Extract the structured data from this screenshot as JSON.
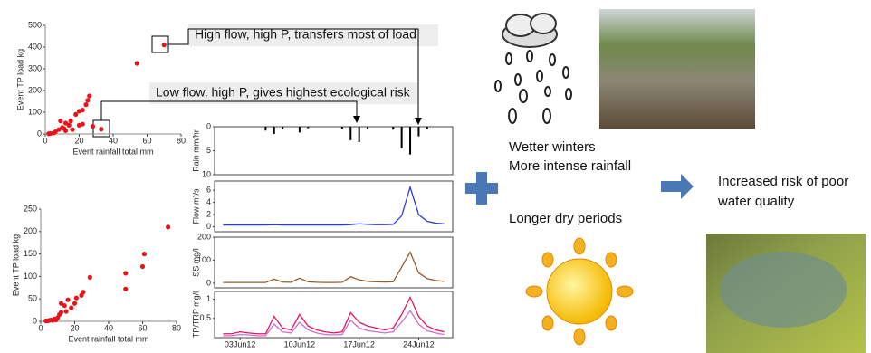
{
  "chart_data": [
    {
      "type": "scatter",
      "xlabel": "Event rainfall total mm",
      "ylabel": "Event TP load kg",
      "color": "#e8141b",
      "x": [
        70,
        54,
        33,
        26,
        25,
        24,
        22,
        20,
        18,
        15,
        14,
        12,
        10,
        8,
        6,
        5,
        3,
        2,
        20,
        22,
        16,
        12,
        9,
        11,
        28
      ],
      "values": [
        410,
        325,
        22,
        175,
        155,
        135,
        110,
        105,
        90,
        60,
        40,
        50,
        30,
        20,
        10,
        5,
        2,
        1,
        40,
        45,
        20,
        15,
        60,
        25,
        35
      ],
      "xlim": [
        0,
        80
      ],
      "ylim": [
        0,
        500
      ],
      "xticks": [
        0,
        20,
        40,
        60,
        80
      ],
      "yticks": [
        0,
        100,
        200,
        300,
        400,
        500
      ]
    },
    {
      "type": "scatter",
      "xlabel": "Event rainfall total mm",
      "ylabel": "Event TP load kg",
      "color": "#e8141b",
      "x": [
        75,
        61,
        60,
        50,
        50,
        29,
        25,
        24,
        21,
        20,
        18,
        16,
        14,
        12,
        11,
        10,
        8,
        6,
        5,
        3,
        12,
        15,
        9,
        7,
        4
      ],
      "values": [
        210,
        150,
        122,
        107,
        72,
        98,
        65,
        58,
        52,
        40,
        30,
        48,
        35,
        20,
        15,
        8,
        5,
        3,
        2,
        1,
        40,
        22,
        3,
        2,
        1
      ],
      "xlim": [
        0,
        80
      ],
      "ylim": [
        0,
        250
      ],
      "xticks": [
        0,
        20,
        40,
        60,
        80
      ],
      "yticks": [
        0,
        50,
        100,
        150,
        200,
        250
      ]
    },
    {
      "type": "bar",
      "ylabel": "Rain mm/hr",
      "color": "#000000",
      "x": [
        1,
        2,
        3,
        4,
        5,
        6,
        7,
        8,
        9,
        10,
        11,
        12,
        13,
        14,
        15,
        16,
        17,
        18,
        19,
        20,
        21,
        22,
        23,
        24,
        25,
        26,
        27
      ],
      "values": [
        0,
        0,
        0,
        0,
        0,
        0.8,
        1.5,
        0.5,
        0,
        1.2,
        0.3,
        0,
        0,
        0,
        0.4,
        2.8,
        3.2,
        0.5,
        0,
        0,
        0.6,
        4.5,
        5.8,
        2,
        0.5,
        0,
        0
      ],
      "xlim": [
        0,
        28
      ],
      "ylim": [
        10,
        0
      ],
      "yticks": [
        0,
        5,
        10
      ]
    },
    {
      "type": "line",
      "ylabel": "Flow m³/s",
      "x": [
        1,
        2,
        3,
        4,
        5,
        6,
        7,
        8,
        9,
        10,
        11,
        12,
        13,
        14,
        15,
        16,
        17,
        18,
        19,
        20,
        21,
        22,
        23,
        24,
        25,
        26,
        27
      ],
      "series": [
        {
          "color": "#2a3bd6",
          "values": [
            0.3,
            0.3,
            0.3,
            0.3,
            0.3,
            0.3,
            0.35,
            0.3,
            0.3,
            0.3,
            0.3,
            0.3,
            0.3,
            0.3,
            0.3,
            0.35,
            0.5,
            0.4,
            0.35,
            0.35,
            0.4,
            1.8,
            6.5,
            2,
            0.9,
            0.6,
            0.5
          ]
        }
      ],
      "xlim": [
        0,
        28
      ],
      "ylim": [
        -0.8,
        7.5
      ],
      "yticks": [
        0,
        2,
        4,
        6
      ]
    },
    {
      "type": "line",
      "ylabel": "SS mg/l",
      "x": [
        1,
        2,
        3,
        4,
        5,
        6,
        7,
        8,
        9,
        10,
        11,
        12,
        13,
        14,
        15,
        16,
        17,
        18,
        19,
        20,
        21,
        22,
        23,
        24,
        25,
        26,
        27
      ],
      "series": [
        {
          "color": "#9a5a2a",
          "values": [
            3,
            3,
            3,
            3,
            3,
            3,
            18,
            5,
            4,
            22,
            6,
            4,
            3,
            3,
            4,
            28,
            15,
            8,
            6,
            5,
            6,
            70,
            135,
            45,
            20,
            12,
            8
          ]
        }
      ],
      "xlim": [
        0,
        28
      ],
      "ylim": [
        -20,
        200
      ],
      "yticks": [
        0,
        100,
        200
      ]
    },
    {
      "type": "line",
      "ylabel": "TP/TRP  mg/l",
      "x": [
        1,
        2,
        3,
        4,
        5,
        6,
        7,
        8,
        9,
        10,
        11,
        12,
        13,
        14,
        15,
        16,
        17,
        18,
        19,
        20,
        21,
        22,
        23,
        24,
        25,
        26,
        27
      ],
      "series": [
        {
          "color": "#e0185a",
          "values": [
            0.1,
            0.1,
            0.15,
            0.12,
            0.1,
            0.1,
            0.55,
            0.25,
            0.2,
            0.6,
            0.3,
            0.2,
            0.15,
            0.12,
            0.15,
            0.65,
            0.4,
            0.3,
            0.25,
            0.2,
            0.25,
            0.6,
            1.05,
            0.55,
            0.3,
            0.2,
            0.15
          ]
        },
        {
          "color": "#d36ad6",
          "values": [
            0.05,
            0.05,
            0.08,
            0.07,
            0.05,
            0.05,
            0.35,
            0.15,
            0.12,
            0.4,
            0.2,
            0.12,
            0.08,
            0.07,
            0.08,
            0.45,
            0.25,
            0.18,
            0.15,
            0.12,
            0.15,
            0.4,
            0.7,
            0.35,
            0.18,
            0.12,
            0.08
          ]
        }
      ],
      "xlim": [
        0,
        28
      ],
      "ylim": [
        0,
        1.2
      ],
      "yticks": [
        0.5,
        1
      ],
      "xticks": [
        {
          "value": 3,
          "label": "03Jun12"
        },
        {
          "value": 10,
          "label": "10Jun12"
        },
        {
          "value": 17,
          "label": "17Jun12"
        },
        {
          "value": 24,
          "label": "24Jun12"
        }
      ]
    }
  ],
  "annotations": [
    "High flow, high P, transfers most of load",
    "Low flow, high P, gives highest ecological risk"
  ],
  "labels": {
    "wetter": "Wetter winters",
    "intense": "More intense rainfall",
    "dry": "Longer dry periods",
    "risk1": "Increased risk of poor",
    "risk2": "water quality"
  }
}
